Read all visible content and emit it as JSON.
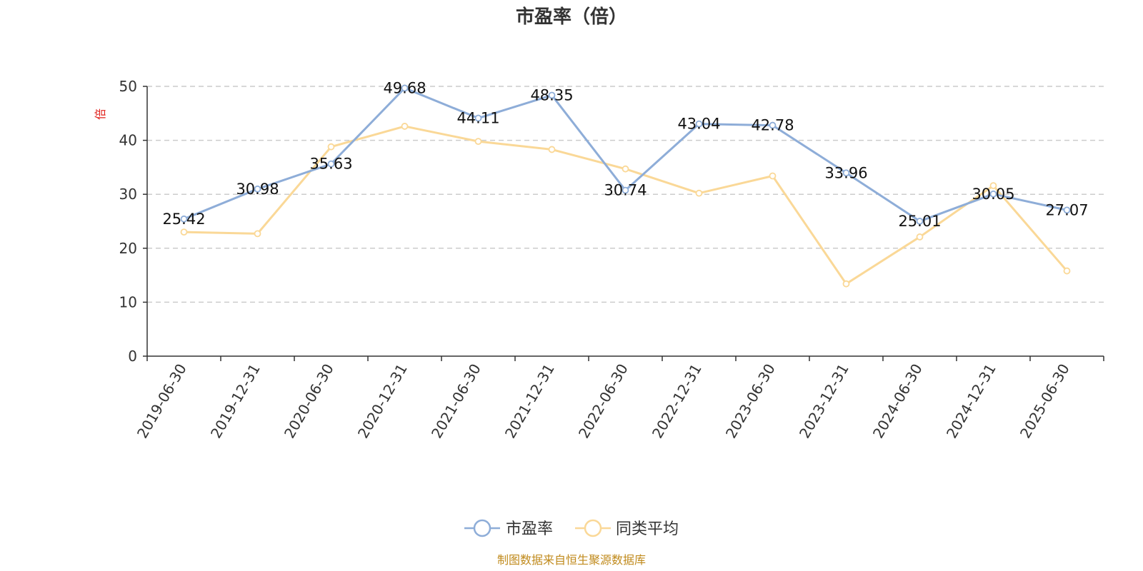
{
  "chart_data": {
    "type": "line",
    "title": "市盈率（倍）",
    "ylabel": "倍",
    "ylim": [
      0,
      50
    ],
    "yticks": [
      0,
      10,
      20,
      30,
      40,
      50
    ],
    "grid": true,
    "legend_position": "bottom-center",
    "categories": [
      "2019-06-30",
      "2019-12-31",
      "2020-06-30",
      "2020-12-31",
      "2021-06-30",
      "2021-12-31",
      "2022-06-30",
      "2022-12-31",
      "2023-06-30",
      "2023-12-31",
      "2024-06-30",
      "2024-12-31",
      "2025-06-30"
    ],
    "series": [
      {
        "name": "市盈率",
        "color": "#8eadd8",
        "values": [
          25.42,
          30.98,
          35.63,
          49.68,
          44.11,
          48.35,
          30.74,
          43.04,
          42.78,
          33.96,
          25.01,
          30.05,
          27.07
        ],
        "labels": [
          "25.42",
          "30.98",
          "35.63",
          "49.68",
          "44.11",
          "48.35",
          "30.74",
          "43.04",
          "42.78",
          "33.96",
          "25.01",
          "30.05",
          "27.07"
        ]
      },
      {
        "name": "同类平均",
        "color": "#fad897",
        "values": [
          23.0,
          22.7,
          38.8,
          42.6,
          39.8,
          38.3,
          34.7,
          30.2,
          33.4,
          13.4,
          22.1,
          31.6,
          15.8
        ]
      }
    ]
  },
  "source": "制图数据来自恒生聚源数据库"
}
